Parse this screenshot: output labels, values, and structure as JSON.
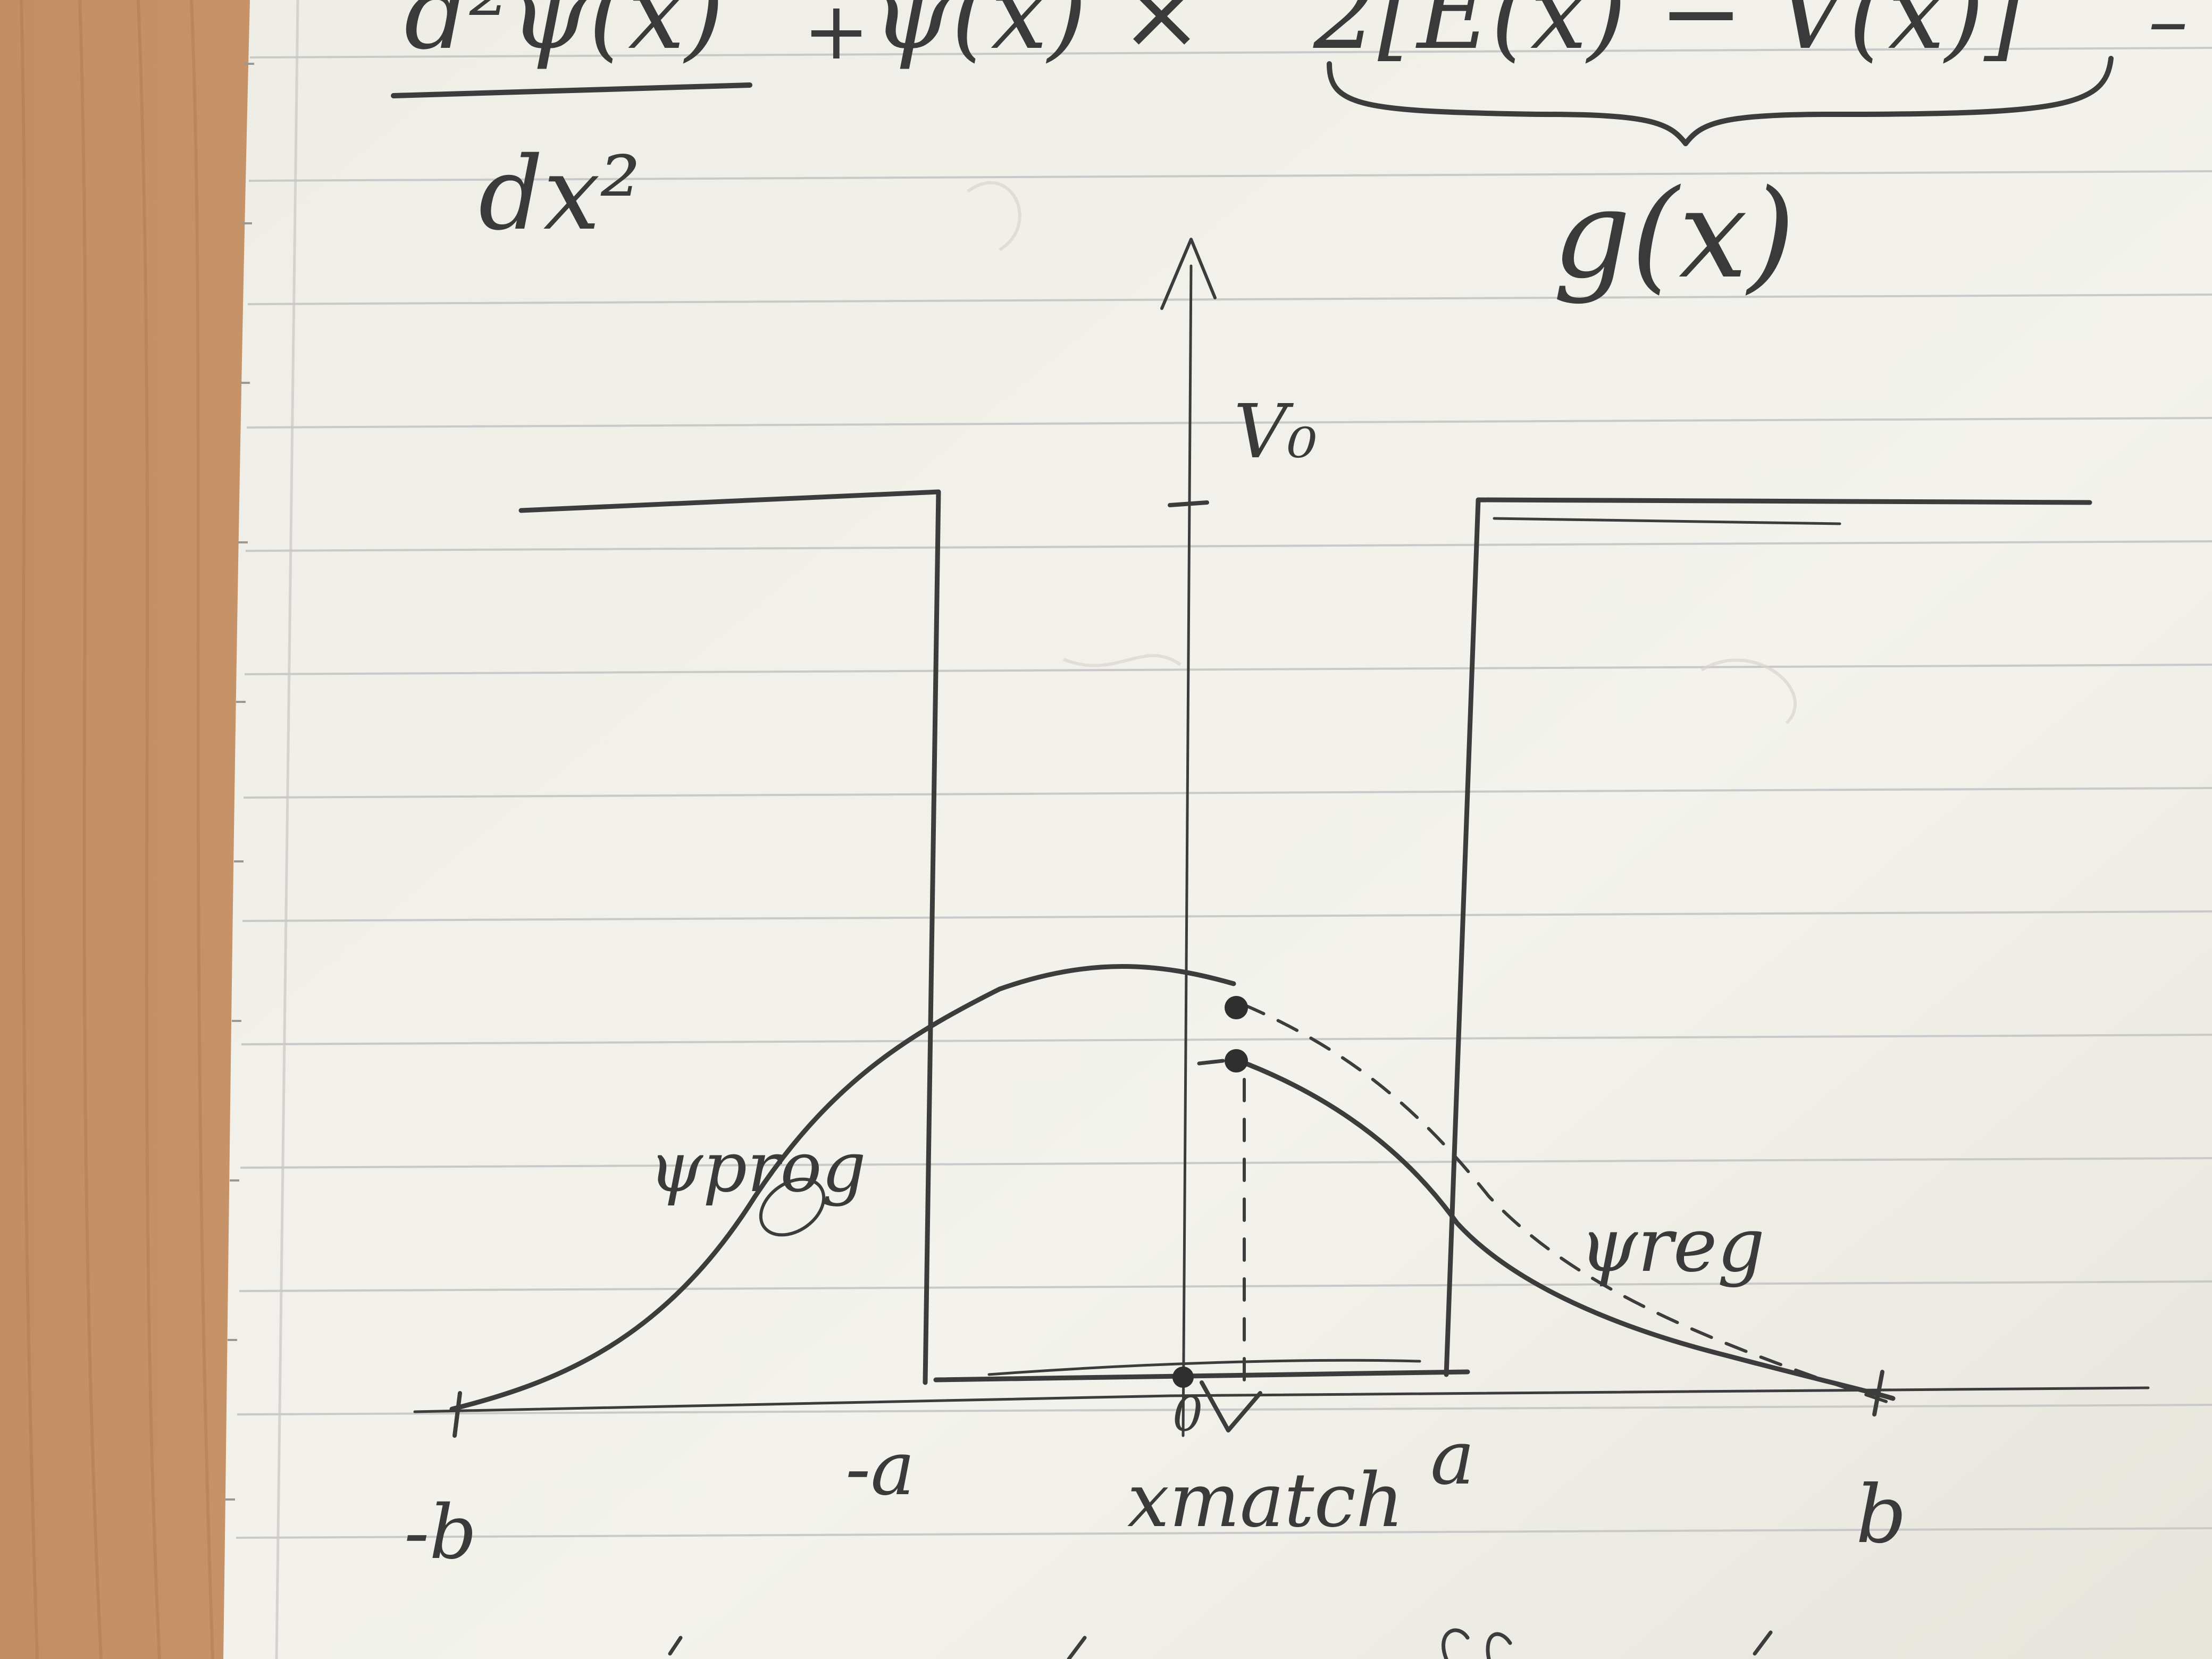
{
  "equation": {
    "lhs_numerator": "d²ψ(x)",
    "lhs_denominator": "dx²",
    "plus": "+",
    "middle": "ψ(x) ×",
    "bracket_content": "2[E(x) − V(x)]",
    "underbrace_label": "g(x)",
    "trailing": "–"
  },
  "graph": {
    "potential_label": "V₀",
    "curve_left_label": "ψprog",
    "curve_right_label": "ψreg",
    "ticks": {
      "minus_b": "-b",
      "minus_a": "-a",
      "zero": "0",
      "x_match": "xmatch",
      "a": "a",
      "b": "b"
    }
  },
  "colors": {
    "paper": "#f0efe9",
    "wood": "#c8956a",
    "pencil": "#3c3c3c",
    "rule_lines": "#c9c9c9",
    "margin": "#d6d2cf"
  }
}
